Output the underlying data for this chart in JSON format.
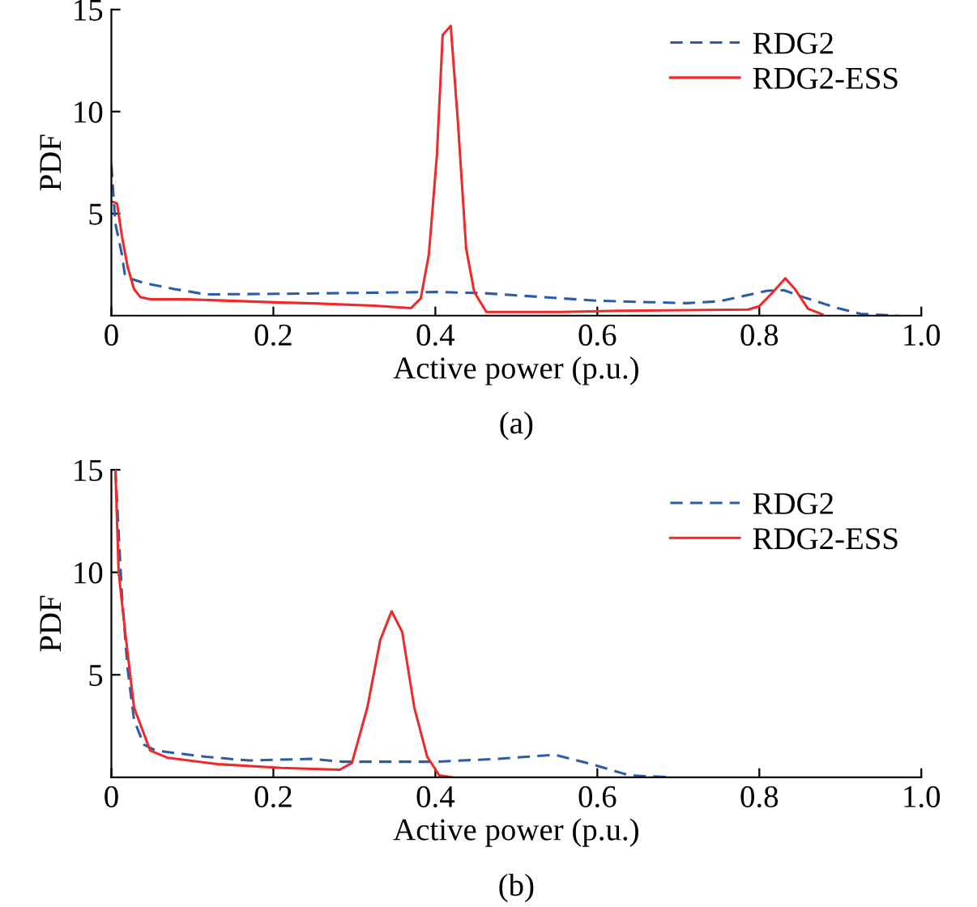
{
  "chart_data": [
    {
      "type": "line",
      "xlabel": "Active power (p.u.)",
      "ylabel": "PDF",
      "annotations": [
        "(a)"
      ],
      "xlim": [
        0,
        1.0
      ],
      "ylim": [
        0,
        15
      ],
      "xticks": [
        0,
        0.2,
        0.4,
        0.6,
        0.8,
        {
          "value": 1,
          "label": "1.0"
        }
      ],
      "yticks": [
        5,
        10,
        15
      ],
      "grid": false,
      "legend": "top right",
      "marker": "none",
      "series": [
        {
          "name": "RDG2",
          "color": "#2a5caa",
          "line_style": "dashed",
          "x": [
            0,
            0.005,
            0.013,
            0.017,
            0.04,
            0.078,
            0.117,
            0.21,
            0.4,
            0.46,
            0.6,
            0.71,
            0.75,
            0.81,
            0.83,
            0.855,
            0.894,
            0.925,
            0.97
          ],
          "values": [
            7.4,
            4.5,
            3.0,
            1.9,
            1.6,
            1.3,
            1.04,
            1.07,
            1.16,
            1.1,
            0.73,
            0.61,
            0.7,
            1.22,
            1.25,
            0.9,
            0.4,
            0.09,
            0
          ]
        },
        {
          "name": "RDG2-ESS",
          "color": "#ee2a2a",
          "line_style": "solid",
          "x": [
            0,
            0.007,
            0.013,
            0.02,
            0.028,
            0.036,
            0.048,
            0.094,
            0.21,
            0.25,
            0.325,
            0.37,
            0.382,
            0.392,
            0.402,
            0.409,
            0.419,
            0.428,
            0.438,
            0.448,
            0.463,
            0.555,
            0.63,
            0.786,
            0.8,
            0.817,
            0.832,
            0.844,
            0.86,
            0.878
          ],
          "values": [
            5.6,
            5.5,
            3.9,
            2.4,
            1.3,
            0.9,
            0.8,
            0.8,
            0.64,
            0.6,
            0.49,
            0.37,
            0.85,
            3.0,
            7.9,
            13.75,
            14.2,
            9.4,
            3.3,
            1.16,
            0.18,
            0.18,
            0.24,
            0.3,
            0.46,
            1.16,
            1.83,
            1.3,
            0.34,
            0.06
          ]
        }
      ]
    },
    {
      "type": "line",
      "xlabel": "Active power (p.u.)",
      "ylabel": "PDF",
      "annotations": [
        "(b)"
      ],
      "xlim": [
        0,
        1.0
      ],
      "ylim": [
        0,
        15
      ],
      "xticks": [
        0,
        0.2,
        0.4,
        0.6,
        0.8,
        {
          "value": 1,
          "label": "1.0"
        }
      ],
      "yticks": [
        5,
        10,
        15
      ],
      "grid": false,
      "legend": "top right",
      "marker": "none",
      "series": [
        {
          "name": "RDG2",
          "color": "#2a5caa",
          "line_style": "dashed",
          "x": [
            0.005,
            0.013,
            0.02,
            0.028,
            0.04,
            0.055,
            0.117,
            0.17,
            0.247,
            0.285,
            0.4,
            0.478,
            0.547,
            0.593,
            0.64,
            0.693
          ],
          "values": [
            15,
            8.9,
            5.3,
            2.8,
            1.6,
            1.3,
            1.0,
            0.82,
            0.9,
            0.76,
            0.76,
            0.9,
            1.1,
            0.64,
            0.09,
            0
          ]
        },
        {
          "name": "RDG2-ESS",
          "color": "#ee2a2a",
          "line_style": "solid",
          "x": [
            0.005,
            0.009,
            0.017,
            0.028,
            0.048,
            0.07,
            0.132,
            0.21,
            0.282,
            0.297,
            0.316,
            0.332,
            0.346,
            0.359,
            0.374,
            0.39,
            0.405,
            0.42
          ],
          "values": [
            15,
            10,
            7.1,
            3.4,
            1.3,
            0.95,
            0.64,
            0.46,
            0.37,
            0.7,
            3.4,
            6.7,
            8.1,
            7.1,
            3.4,
            1.0,
            0.09,
            0
          ]
        }
      ]
    }
  ]
}
